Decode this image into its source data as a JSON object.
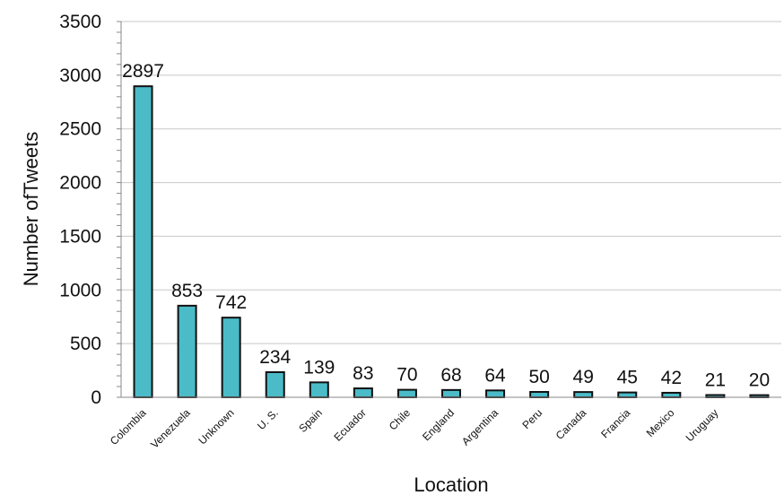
{
  "chart_data": {
    "type": "bar",
    "categories": [
      "Colombia",
      "Venezuela",
      "Unknown",
      "U. S.",
      "Spain",
      "Ecuador",
      "Chile",
      "England",
      "Argentina",
      "Peru",
      "Canada",
      "Francia",
      "Mexico",
      "Uruguay",
      ""
    ],
    "values": [
      2897,
      853,
      742,
      234,
      139,
      83,
      70,
      68,
      64,
      50,
      49,
      45,
      42,
      21,
      20
    ],
    "data_labels": [
      "2897",
      "853",
      "742",
      "234",
      "139",
      "83",
      "70",
      "68",
      "64",
      "50",
      "49",
      "45",
      "42",
      "21",
      "20"
    ],
    "title": "",
    "xlabel": "Location",
    "ylabel": "Number ofTweets",
    "ylim": [
      0,
      3500
    ],
    "yticks": [
      0,
      500,
      1000,
      1500,
      2000,
      2500,
      3000,
      3500
    ],
    "grid": true,
    "legend": "none",
    "bar_color": "#4BBBC8",
    "bar_edge_color": "#111111"
  }
}
